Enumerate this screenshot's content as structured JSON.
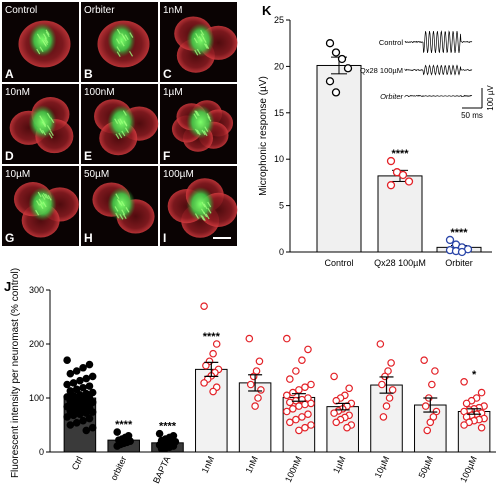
{
  "panels": {
    "k": "K",
    "j": "J"
  },
  "micrographs": {
    "tiles": [
      {
        "letter": "A",
        "label": "Control",
        "cells": 1
      },
      {
        "letter": "B",
        "label": "Orbiter",
        "cells": 1
      },
      {
        "letter": "C",
        "label": "1nM",
        "cells": 3
      },
      {
        "letter": "D",
        "label": "10nM",
        "cells": 3
      },
      {
        "letter": "E",
        "label": "100nM",
        "cells": 3
      },
      {
        "letter": "F",
        "label": "1µM",
        "cells": 6
      },
      {
        "letter": "G",
        "label": "10µM",
        "cells": 3
      },
      {
        "letter": "H",
        "label": "50µM",
        "cells": 2
      },
      {
        "letter": "I",
        "label": "100µM",
        "cells": 4
      }
    ],
    "colors": {
      "background": "#0a0303",
      "hair_cell": "#b5242b",
      "kinocilium": "#3fd24a"
    }
  },
  "chart_data": [
    {
      "panel": "K",
      "type": "bar",
      "title": "",
      "xlabel": "",
      "ylabel": "Microphonic response (µV)",
      "ylim": [
        0,
        25
      ],
      "yticks": [
        0,
        5,
        10,
        15,
        20,
        25
      ],
      "categories": [
        "Control",
        "Qx28 100µM",
        "Orbiter"
      ],
      "values": [
        20.1,
        8.2,
        0.5
      ],
      "errors": [
        0.9,
        0.6,
        0.2
      ],
      "significance": [
        "",
        "****",
        "****"
      ],
      "point_colors": [
        "#000000",
        "#e32127",
        "#2a45a8"
      ],
      "points": [
        [
          22.5,
          21.5,
          20.8,
          19.8,
          18.4,
          17.2
        ],
        [
          9.8,
          8.6,
          8.3,
          7.6,
          7.2
        ],
        [
          1.3,
          0.8,
          0.5,
          0.3,
          0.2,
          0.1,
          0.0
        ]
      ],
      "inset": {
        "traces": [
          "Control",
          "Qx28 100µM",
          "Orbiter"
        ],
        "trace_amplitudes": [
          1.0,
          0.42,
          0.02
        ],
        "scale_y": "100 µV",
        "scale_x": "50 ms"
      }
    },
    {
      "panel": "J",
      "type": "bar",
      "title": "",
      "xlabel": "",
      "ylabel": "Fluorescent intensity per neuromast (% control)",
      "ylim": [
        0,
        300
      ],
      "yticks": [
        0,
        100,
        200,
        300
      ],
      "categories": [
        "Ctrl",
        "orbiter",
        "BAPTA",
        "1nM",
        "1nM",
        "100nM",
        "1µM",
        "10µM",
        "50µM",
        "100µM"
      ],
      "values": [
        100,
        22,
        17,
        153,
        128,
        101,
        84,
        124,
        87,
        75
      ],
      "errors": [
        4,
        3,
        3,
        13,
        15,
        7,
        6,
        15,
        13,
        5
      ],
      "significance": [
        "",
        "****",
        "****",
        "****",
        "",
        "",
        "",
        "",
        "",
        "*"
      ],
      "group_style": [
        "dark",
        "dark",
        "dark",
        "light",
        "light",
        "light",
        "light",
        "light",
        "light",
        "light"
      ],
      "point_colors": [
        "#000000",
        "#000000",
        "#000000",
        "#e32127",
        "#e32127",
        "#e32127",
        "#e32127",
        "#e32127",
        "#e32127",
        "#e32127"
      ],
      "points": [
        [
          170,
          162,
          156,
          150,
          145,
          140,
          136,
          132,
          128,
          125,
          122,
          119,
          116,
          113,
          110,
          108,
          106,
          104,
          102,
          100,
          98,
          96,
          94,
          92,
          90,
          88,
          86,
          84,
          82,
          80,
          78,
          76,
          74,
          72,
          70,
          68,
          65,
          62,
          58,
          54,
          50,
          45,
          40
        ],
        [
          37,
          30,
          27,
          24,
          22,
          20,
          18,
          16,
          14,
          11
        ],
        [
          34,
          30,
          27,
          24,
          21,
          19,
          18,
          16,
          14,
          13,
          11,
          9,
          7,
          6
        ],
        [
          270,
          200,
          182,
          168,
          160,
          153,
          147,
          141,
          135,
          128,
          120,
          112
        ],
        [
          210,
          168,
          150,
          140,
          125,
          115,
          100,
          85
        ],
        [
          210,
          190,
          170,
          150,
          135,
          125,
          120,
          115,
          110,
          105,
          100,
          97,
          95,
          92,
          90,
          88,
          85,
          80,
          75,
          70,
          65,
          60,
          55,
          50,
          45,
          40
        ],
        [
          140,
          118,
          105,
          100,
          95,
          90,
          85,
          80,
          76,
          72,
          68,
          64,
          60,
          55,
          50,
          45
        ],
        [
          200,
          165,
          150,
          140,
          125,
          115,
          100,
          85,
          65
        ],
        [
          170,
          150,
          125,
          100,
          85,
          75,
          65,
          55,
          40
        ],
        [
          130,
          110,
          100,
          95,
          90,
          85,
          82,
          80,
          78,
          75,
          72,
          70,
          68,
          65,
          62,
          60,
          58,
          55,
          50,
          45
        ]
      ]
    }
  ]
}
